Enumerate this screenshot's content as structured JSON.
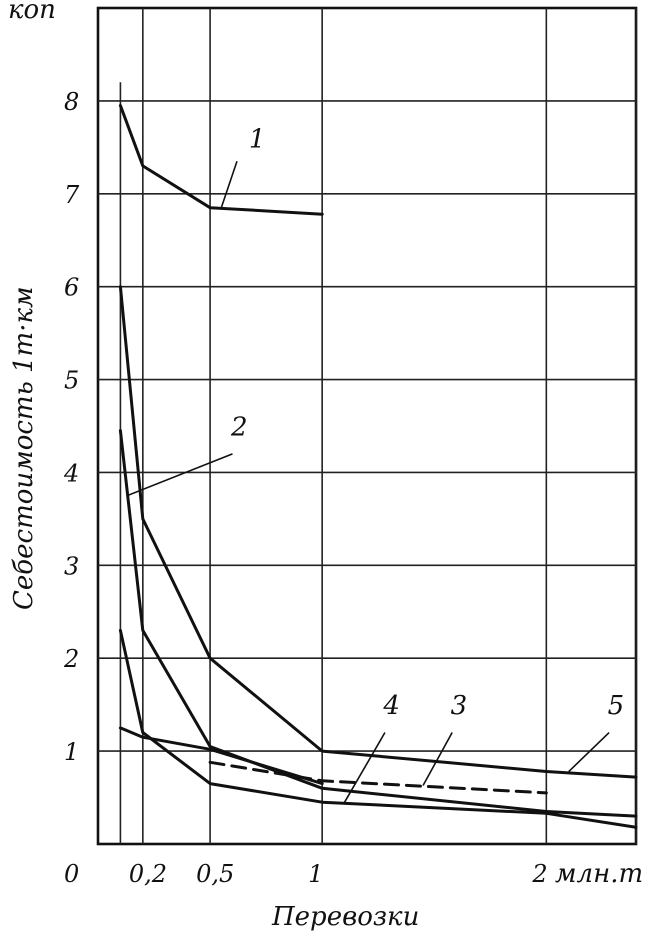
{
  "chart_data": {
    "type": "line",
    "y_unit": "коп",
    "x_unit": "млн.т",
    "ylabel": "Себестоимость 1т·км",
    "xlabel": "Перевозки",
    "xlim": [
      0,
      2.4
    ],
    "ylim": [
      0,
      9
    ],
    "grid": true,
    "x_ticks": [
      {
        "value": 0,
        "label": "0"
      },
      {
        "value": 0.2,
        "label": "0,2"
      },
      {
        "value": 0.5,
        "label": "0,5"
      },
      {
        "value": 1,
        "label": "1"
      },
      {
        "value": 2,
        "label": "2"
      }
    ],
    "y_ticks": [
      {
        "value": 1,
        "label": "1"
      },
      {
        "value": 2,
        "label": "2"
      },
      {
        "value": 3,
        "label": "3"
      },
      {
        "value": 4,
        "label": "4"
      },
      {
        "value": 5,
        "label": "5"
      },
      {
        "value": 6,
        "label": "6"
      },
      {
        "value": 7,
        "label": "7"
      },
      {
        "value": 8,
        "label": "8"
      }
    ],
    "series": [
      {
        "name": "1",
        "dashed": false,
        "x": [
          0.1,
          0.2,
          0.5,
          1.0
        ],
        "y": [
          7.95,
          7.3,
          6.85,
          6.78
        ]
      },
      {
        "name": "2",
        "dashed": false,
        "x": [
          0.1,
          0.2,
          0.5,
          1.0,
          2.0,
          2.4
        ],
        "y": [
          6.0,
          3.5,
          2.0,
          1.0,
          0.78,
          0.72
        ]
      },
      {
        "name": "3",
        "dashed": false,
        "x": [
          0.1,
          0.2,
          0.5,
          1.0,
          2.0,
          2.4
        ],
        "y": [
          4.45,
          2.3,
          1.05,
          0.6,
          0.35,
          0.3
        ]
      },
      {
        "name": "3",
        "dashed": true,
        "x": [
          0.5,
          1.0,
          2.0
        ],
        "y": [
          0.88,
          0.68,
          0.55
        ]
      },
      {
        "name": "4",
        "dashed": false,
        "x": [
          0.1,
          0.2,
          0.5,
          1.0,
          2.0,
          2.4
        ],
        "y": [
          2.3,
          1.2,
          0.65,
          0.45,
          0.33,
          0.18
        ]
      },
      {
        "name": "5",
        "dashed": false,
        "x": [
          0.1,
          0.2,
          0.5,
          1.0
        ],
        "y": [
          1.25,
          1.15,
          1.02,
          0.65
        ]
      }
    ],
    "curve_labels": [
      "1",
      "2",
      "3",
      "4",
      "5"
    ]
  }
}
